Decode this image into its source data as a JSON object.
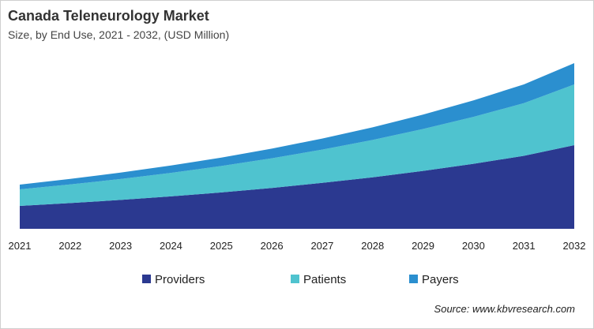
{
  "chart_data": {
    "type": "area",
    "stacked": true,
    "title": "Canada Teleneurology Market",
    "subtitle": "Size, by End Use, 2021 - 2032, (USD Million)",
    "xlabel": "",
    "ylabel": "",
    "categories": [
      "2021",
      "2022",
      "2023",
      "2024",
      "2025",
      "2026",
      "2027",
      "2028",
      "2029",
      "2030",
      "2031",
      "2032"
    ],
    "series": [
      {
        "name": "Providers",
        "color": "#2b3990",
        "values": [
          29,
          32.6,
          36.6,
          41.1,
          46.1,
          51.8,
          58.2,
          65.3,
          73.4,
          82.4,
          92.5,
          106
        ]
      },
      {
        "name": "Patients",
        "color": "#4fc3cf",
        "values": [
          21,
          23.6,
          26.5,
          29.8,
          33.5,
          37.6,
          42.2,
          47.3,
          53.1,
          59.5,
          66.7,
          77
        ]
      },
      {
        "name": "Payers",
        "color": "#2b8fcf",
        "values": [
          6,
          7.0,
          8.1,
          9.3,
          10.7,
          12.2,
          14.0,
          16.0,
          18.3,
          20.9,
          23.8,
          27
        ]
      }
    ],
    "ylim": [
      0,
      220
    ],
    "y_axis_shown": false,
    "grid": false,
    "legend_position": "bottom"
  },
  "source": "Source: www.kbvresearch.com"
}
